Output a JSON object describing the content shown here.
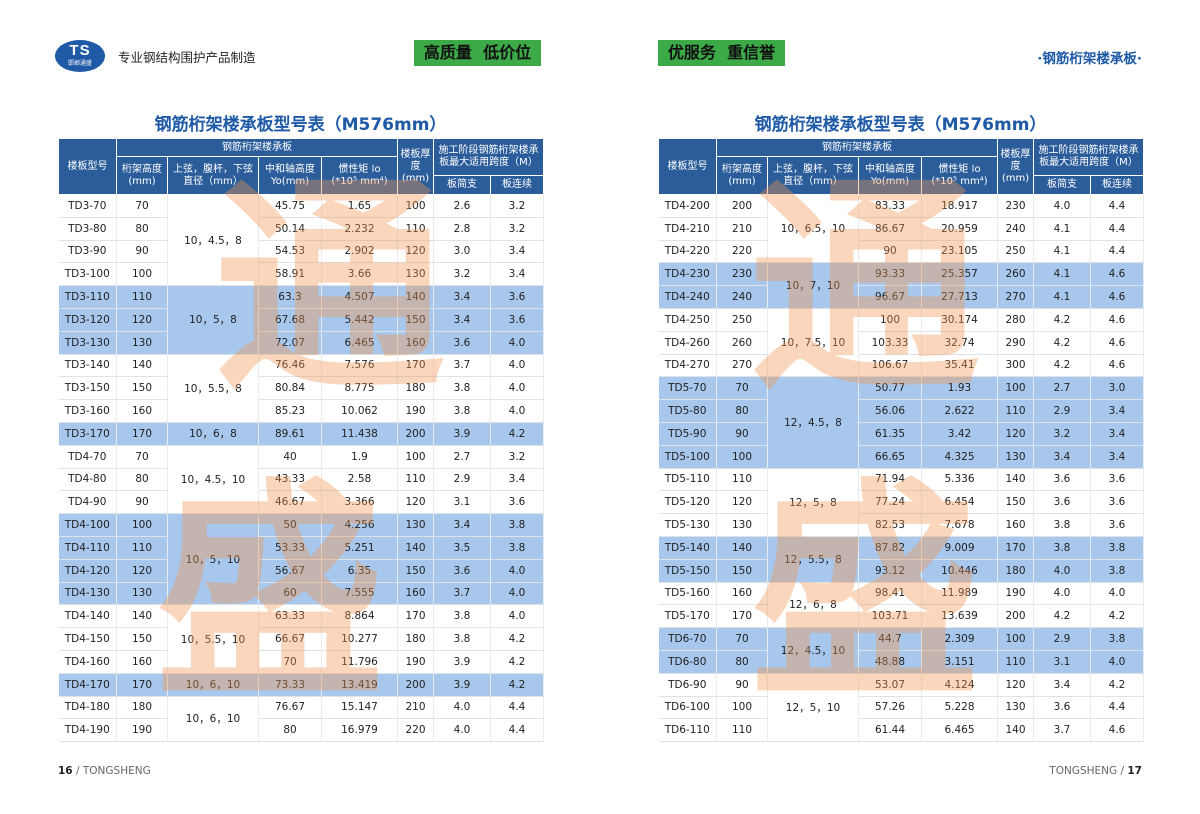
{
  "left": {
    "logo": {
      "mark": "TS",
      "name": "邯郸通盛"
    },
    "tagline": "专业钢结构围护产品制造",
    "badge": "高质量  低价位",
    "title": "钢筋桁架楼承板型号表（M576mm）",
    "table": {
      "header": {
        "model": "楼板型号",
        "group": "钢筋桁架楼承板",
        "height": "桁架高度(mm)",
        "diameter": "上弦，腹杆，下弦直径（mm）",
        "yo": "中和轴高度Yo(mm)",
        "io": "惯性矩 Io (*10⁵ mm⁴)",
        "thick": "楼板厚度(mm)",
        "span": "施工阶段钢筋桁架楼承板最大适用跨度（M）",
        "simple": "板简支",
        "continuous": "板连续"
      },
      "groups": [
        {
          "diameter": "10，4.5，8",
          "rows": [
            [
              "TD3-70",
              "70",
              "45.75",
              "1.65",
              "100",
              "2.6",
              "3.2"
            ],
            [
              "TD3-80",
              "80",
              "50.14",
              "2.232",
              "110",
              "2.8",
              "3.2"
            ],
            [
              "TD3-90",
              "90",
              "54.53",
              "2.902",
              "120",
              "3.0",
              "3.4"
            ],
            [
              "TD3-100",
              "100",
              "58.91",
              "3.66",
              "130",
              "3.2",
              "3.4"
            ]
          ]
        },
        {
          "diameter": "10，5，8",
          "rows": [
            [
              "TD3-110",
              "110",
              "63.3",
              "4.507",
              "140",
              "3.4",
              "3.6"
            ],
            [
              "TD3-120",
              "120",
              "67.68",
              "5.442",
              "150",
              "3.4",
              "3.6"
            ],
            [
              "TD3-130",
              "130",
              "72.07",
              "6.465",
              "160",
              "3.6",
              "4.0"
            ]
          ]
        },
        {
          "diameter": "10，5.5，8",
          "rows": [
            [
              "TD3-140",
              "140",
              "76.46",
              "7.576",
              "170",
              "3.7",
              "4.0"
            ],
            [
              "TD3-150",
              "150",
              "80.84",
              "8.775",
              "180",
              "3.8",
              "4.0"
            ],
            [
              "TD3-160",
              "160",
              "85.23",
              "10.062",
              "190",
              "3.8",
              "4.0"
            ]
          ]
        },
        {
          "diameter": "10，6，8",
          "rows": [
            [
              "TD3-170",
              "170",
              "89.61",
              "11.438",
              "200",
              "3.9",
              "4.2"
            ]
          ]
        },
        {
          "diameter": "10，4.5，10",
          "rows": [
            [
              "TD4-70",
              "70",
              "40",
              "1.9",
              "100",
              "2.7",
              "3.2"
            ],
            [
              "TD4-80",
              "80",
              "43.33",
              "2.58",
              "110",
              "2.9",
              "3.4"
            ],
            [
              "TD4-90",
              "90",
              "46.67",
              "3.366",
              "120",
              "3.1",
              "3.6"
            ]
          ]
        },
        {
          "diameter": "10，5，10",
          "rows": [
            [
              "TD4-100",
              "100",
              "50",
              "4.256",
              "130",
              "3.4",
              "3.8"
            ],
            [
              "TD4-110",
              "110",
              "53.33",
              "5.251",
              "140",
              "3.5",
              "3.8"
            ],
            [
              "TD4-120",
              "120",
              "56.67",
              "6.35",
              "150",
              "3.6",
              "4.0"
            ],
            [
              "TD4-130",
              "130",
              "60",
              "7.555",
              "160",
              "3.7",
              "4.0"
            ]
          ]
        },
        {
          "diameter": "10，5.5，10",
          "rows": [
            [
              "TD4-140",
              "140",
              "63.33",
              "8.864",
              "170",
              "3.8",
              "4.0"
            ],
            [
              "TD4-150",
              "150",
              "66.67",
              "10.277",
              "180",
              "3.8",
              "4.2"
            ],
            [
              "TD4-160",
              "160",
              "70",
              "11.796",
              "190",
              "3.9",
              "4.2"
            ]
          ]
        },
        {
          "diameter": "10，6，10",
          "rows": [
            [
              "TD4-170",
              "170",
              "73.33",
              "13.419",
              "200",
              "3.9",
              "4.2"
            ]
          ]
        },
        {
          "diameter": "10，6，10",
          "rows": [
            [
              "TD4-180",
              "180",
              "76.67",
              "15.147",
              "210",
              "4.0",
              "4.4"
            ],
            [
              "TD4-190",
              "190",
              "80",
              "16.979",
              "220",
              "4.0",
              "4.4"
            ]
          ]
        }
      ]
    },
    "watermark": [
      "通",
      "盛"
    ],
    "footer": {
      "number": "16",
      "separator": "/",
      "brand": "TONGSHENG"
    }
  },
  "right": {
    "badge": "优服务  重信誉",
    "section": "·钢筋桁架楼承板·",
    "title": "钢筋桁架楼承板型号表（M576mm）",
    "table": {
      "header": {
        "model": "楼板型号",
        "group": "钢筋桁架楼承板",
        "height": "桁架高度(mm)",
        "diameter": "上弦，腹杆，下弦直径（mm）",
        "yo": "中和轴高度Yo(mm)",
        "io": "惯性矩 Io (*10⁵ mm⁴)",
        "thick": "楼板厚度(mm)",
        "span": "施工阶段钢筋桁架楼承板最大适用跨度（M）",
        "simple": "板简支",
        "continuous": "板连续"
      },
      "groups": [
        {
          "diameter": "10，6.5，10",
          "rows": [
            [
              "TD4-200",
              "200",
              "83.33",
              "18.917",
              "230",
              "4.0",
              "4.4"
            ],
            [
              "TD4-210",
              "210",
              "86.67",
              "20.959",
              "240",
              "4.1",
              "4.4"
            ],
            [
              "TD4-220",
              "220",
              "90",
              "23.105",
              "250",
              "4.1",
              "4.4"
            ]
          ]
        },
        {
          "diameter": "10，7，10",
          "rows": [
            [
              "TD4-230",
              "230",
              "93.33",
              "25.357",
              "260",
              "4.1",
              "4.6"
            ],
            [
              "TD4-240",
              "240",
              "96.67",
              "27.713",
              "270",
              "4.1",
              "4.6"
            ]
          ]
        },
        {
          "diameter": "10，7.5，10",
          "rows": [
            [
              "TD4-250",
              "250",
              "100",
              "30.174",
              "280",
              "4.2",
              "4.6"
            ],
            [
              "TD4-260",
              "260",
              "103.33",
              "32.74",
              "290",
              "4.2",
              "4.6"
            ],
            [
              "TD4-270",
              "270",
              "106.67",
              "35.41",
              "300",
              "4.2",
              "4.6"
            ]
          ]
        },
        {
          "diameter": "12，4.5，8",
          "rows": [
            [
              "TD5-70",
              "70",
              "50.77",
              "1.93",
              "100",
              "2.7",
              "3.0"
            ],
            [
              "TD5-80",
              "80",
              "56.06",
              "2.622",
              "110",
              "2.9",
              "3.4"
            ],
            [
              "TD5-90",
              "90",
              "61.35",
              "3.42",
              "120",
              "3.2",
              "3.4"
            ],
            [
              "TD5-100",
              "100",
              "66.65",
              "4.325",
              "130",
              "3.4",
              "3.4"
            ]
          ]
        },
        {
          "diameter": "12，5，8",
          "rows": [
            [
              "TD5-110",
              "110",
              "71.94",
              "5.336",
              "140",
              "3.6",
              "3.6"
            ],
            [
              "TD5-120",
              "120",
              "77.24",
              "6.454",
              "150",
              "3.6",
              "3.6"
            ],
            [
              "TD5-130",
              "130",
              "82.53",
              "7.678",
              "160",
              "3.8",
              "3.6"
            ]
          ]
        },
        {
          "diameter": "12，5.5，8",
          "rows": [
            [
              "TD5-140",
              "140",
              "87.82",
              "9.009",
              "170",
              "3.8",
              "3.8"
            ],
            [
              "TD5-150",
              "150",
              "93.12",
              "10.446",
              "180",
              "4.0",
              "3.8"
            ]
          ]
        },
        {
          "diameter": "12，6，8",
          "rows": [
            [
              "TD5-160",
              "160",
              "98.41",
              "11.989",
              "190",
              "4.0",
              "4.0"
            ],
            [
              "TD5-170",
              "170",
              "103.71",
              "13.639",
              "200",
              "4.2",
              "4.2"
            ]
          ]
        },
        {
          "diameter": "12，4.5，10",
          "rows": [
            [
              "TD6-70",
              "70",
              "44.7",
              "2.309",
              "100",
              "2.9",
              "3.8"
            ],
            [
              "TD6-80",
              "80",
              "48.88",
              "3.151",
              "110",
              "3.1",
              "4.0"
            ]
          ]
        },
        {
          "diameter": "12，5，10",
          "rows": [
            [
              "TD6-90",
              "90",
              "53.07",
              "4.124",
              "120",
              "3.4",
              "4.2"
            ],
            [
              "TD6-100",
              "100",
              "57.26",
              "5.228",
              "130",
              "3.6",
              "4.4"
            ],
            [
              "TD6-110",
              "110",
              "61.44",
              "6.465",
              "140",
              "3.7",
              "4.6"
            ]
          ]
        }
      ]
    },
    "watermark": [
      "通",
      "盛"
    ],
    "footer": {
      "brand": "TONGSHENG",
      "separator": "/",
      "number": "17"
    }
  }
}
